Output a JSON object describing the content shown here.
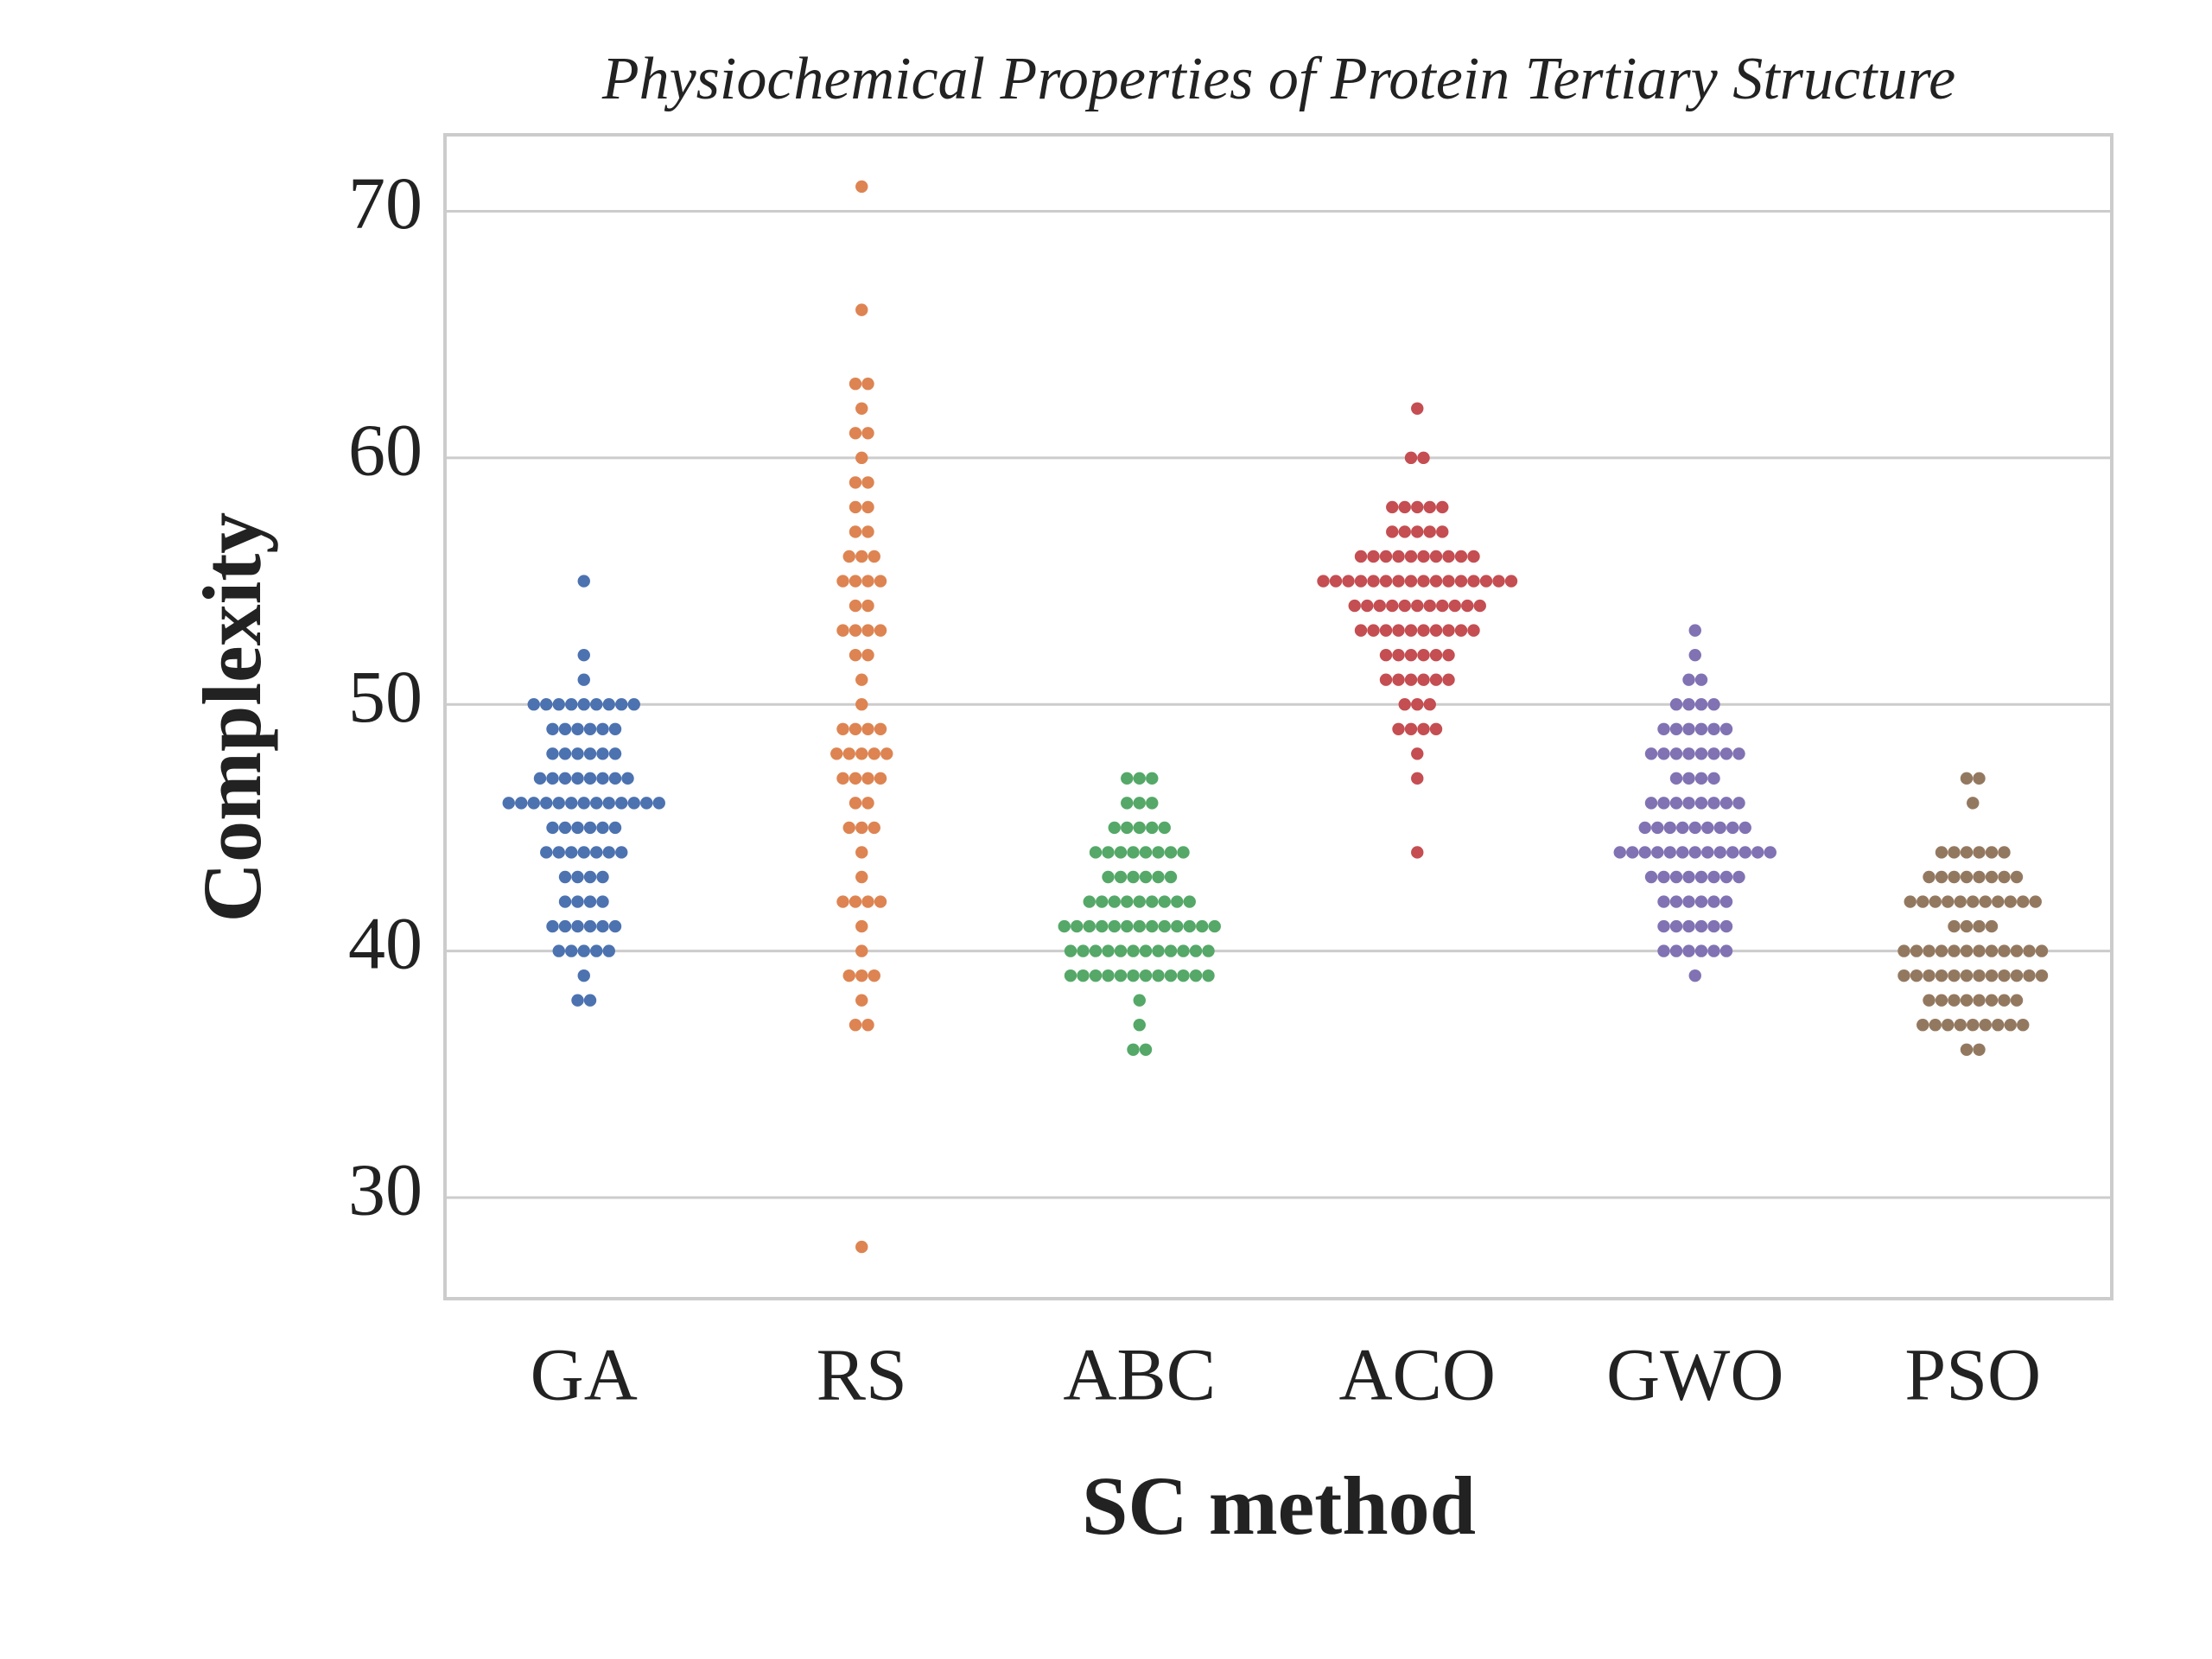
{
  "chart_data": {
    "type": "swarm",
    "title": "Physiochemical Properties of Protein Tertiary Structure",
    "xlabel": "SC method",
    "ylabel": "Complexity",
    "categories": [
      "GA",
      "RS",
      "ABC",
      "ACO",
      "GWO",
      "PSO"
    ],
    "colors": [
      "#4c72b0",
      "#dd8452",
      "#55a868",
      "#c44e52",
      "#8172b3",
      "#937860"
    ],
    "values": [
      [
        55,
        52,
        51,
        50,
        50,
        50,
        50,
        50,
        50,
        50,
        50,
        50,
        49,
        49,
        49,
        49,
        49,
        49,
        48,
        48,
        48,
        48,
        48,
        48,
        47,
        47,
        47,
        47,
        47,
        47,
        47,
        47,
        46,
        46,
        46,
        46,
        46,
        46,
        46,
        46,
        46,
        46,
        46,
        46,
        46,
        45,
        45,
        45,
        45,
        45,
        45,
        44,
        44,
        44,
        44,
        44,
        44,
        44,
        43,
        43,
        43,
        43,
        42,
        42,
        42,
        42,
        41,
        41,
        41,
        41,
        41,
        41,
        40,
        40,
        40,
        40,
        40,
        39,
        38,
        38
      ],
      [
        71,
        66,
        63,
        63,
        62,
        61,
        61,
        60,
        59,
        59,
        58,
        58,
        57,
        57,
        56,
        56,
        56,
        55,
        55,
        55,
        55,
        54,
        54,
        53,
        53,
        53,
        53,
        52,
        52,
        51,
        50,
        49,
        49,
        49,
        49,
        48,
        48,
        48,
        48,
        48,
        47,
        47,
        47,
        47,
        46,
        46,
        45,
        45,
        45,
        44,
        43,
        42,
        42,
        42,
        42,
        41,
        40,
        39,
        39,
        39,
        38,
        37,
        37,
        28
      ],
      [
        47,
        47,
        47,
        46,
        46,
        46,
        45,
        45,
        45,
        45,
        45,
        44,
        44,
        44,
        44,
        44,
        44,
        44,
        44,
        43,
        43,
        43,
        43,
        43,
        43,
        42,
        42,
        42,
        42,
        42,
        42,
        42,
        42,
        42,
        41,
        41,
        41,
        41,
        41,
        41,
        41,
        41,
        41,
        41,
        41,
        41,
        41,
        40,
        40,
        40,
        40,
        40,
        40,
        40,
        40,
        40,
        40,
        40,
        40,
        39,
        39,
        39,
        39,
        39,
        39,
        39,
        39,
        39,
        39,
        39,
        39,
        38,
        37,
        36,
        36
      ],
      [
        62,
        60,
        60,
        58,
        58,
        58,
        58,
        58,
        57,
        57,
        57,
        57,
        57,
        56,
        56,
        56,
        56,
        56,
        56,
        56,
        56,
        56,
        56,
        55,
        55,
        55,
        55,
        55,
        55,
        55,
        55,
        55,
        55,
        55,
        55,
        55,
        55,
        55,
        55,
        54,
        54,
        54,
        54,
        54,
        54,
        54,
        54,
        54,
        54,
        54,
        53,
        53,
        53,
        53,
        53,
        53,
        53,
        53,
        53,
        53,
        52,
        52,
        52,
        52,
        52,
        52,
        51,
        51,
        51,
        51,
        51,
        51,
        50,
        50,
        50,
        49,
        49,
        49,
        49,
        48,
        47,
        44
      ],
      [
        53,
        52,
        51,
        51,
        50,
        50,
        50,
        50,
        49,
        49,
        49,
        49,
        49,
        49,
        48,
        48,
        48,
        48,
        48,
        48,
        48,
        48,
        47,
        47,
        47,
        47,
        46,
        46,
        46,
        46,
        46,
        46,
        46,
        46,
        45,
        45,
        45,
        45,
        45,
        45,
        45,
        45,
        45,
        44,
        44,
        44,
        44,
        44,
        44,
        44,
        44,
        44,
        44,
        44,
        44,
        44,
        43,
        43,
        43,
        43,
        43,
        43,
        43,
        43,
        42,
        42,
        42,
        42,
        42,
        42,
        41,
        41,
        41,
        41,
        41,
        41,
        40,
        40,
        40,
        40,
        40,
        40,
        39
      ],
      [
        47,
        47,
        46,
        44,
        44,
        44,
        44,
        44,
        44,
        43,
        43,
        43,
        43,
        43,
        43,
        43,
        43,
        42,
        42,
        42,
        42,
        42,
        42,
        42,
        42,
        42,
        42,
        42,
        41,
        41,
        41,
        41,
        40,
        40,
        40,
        40,
        40,
        40,
        40,
        40,
        40,
        40,
        40,
        40,
        39,
        39,
        39,
        39,
        39,
        39,
        39,
        39,
        39,
        39,
        39,
        39,
        38,
        38,
        38,
        38,
        38,
        38,
        38,
        38,
        37,
        37,
        37,
        37,
        37,
        37,
        37,
        37,
        37,
        36,
        36
      ]
    ],
    "ylim": [
      25.9,
      73.1
    ],
    "yticks": [
      30,
      40,
      50,
      60,
      70
    ],
    "grid": true
  }
}
